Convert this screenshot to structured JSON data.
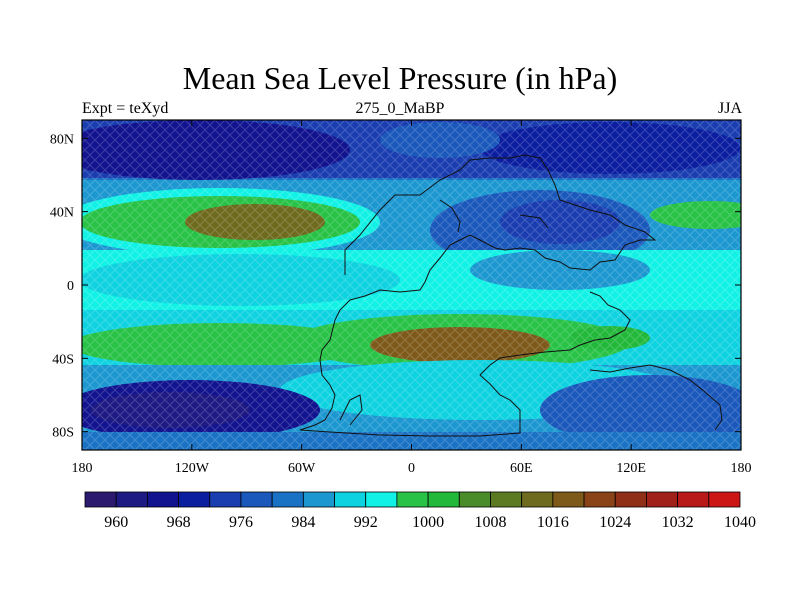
{
  "title": "Mean Sea Level Pressure (in hPa)",
  "left_string": "Expt = teXyd",
  "center_string": "275_0_MaBP",
  "right_string": "JJA",
  "lat_ticks": [
    {
      "label": "80N",
      "value": 80
    },
    {
      "label": "40N",
      "value": 40
    },
    {
      "label": "0",
      "value": 0
    },
    {
      "label": "40S",
      "value": -40
    },
    {
      "label": "80S",
      "value": -80
    }
  ],
  "lon_ticks": [
    {
      "label": "180",
      "value": -180
    },
    {
      "label": "120W",
      "value": -120
    },
    {
      "label": "60W",
      "value": -60
    },
    {
      "label": "0",
      "value": 0
    },
    {
      "label": "60E",
      "value": 60
    },
    {
      "label": "120E",
      "value": 120
    },
    {
      "label": "180",
      "value": 180
    }
  ],
  "colorbar": {
    "colors": [
      "#2b1a6e",
      "#1e1a84",
      "#12138f",
      "#0c1ea0",
      "#1a3db0",
      "#1b58bb",
      "#1a72c4",
      "#1c97d0",
      "#0fd2e0",
      "#12f1e6",
      "#28c247",
      "#22b83a",
      "#4a8c2a",
      "#5c7a22",
      "#6e6a1e",
      "#7e5a1a",
      "#8a4318",
      "#8f2f17",
      "#a0211a",
      "#b81a1a",
      "#cc1616"
    ],
    "labels": [
      "960",
      "968",
      "976",
      "984",
      "992",
      "1000",
      "1008",
      "1016",
      "1024",
      "1032",
      "1040"
    ]
  }
}
